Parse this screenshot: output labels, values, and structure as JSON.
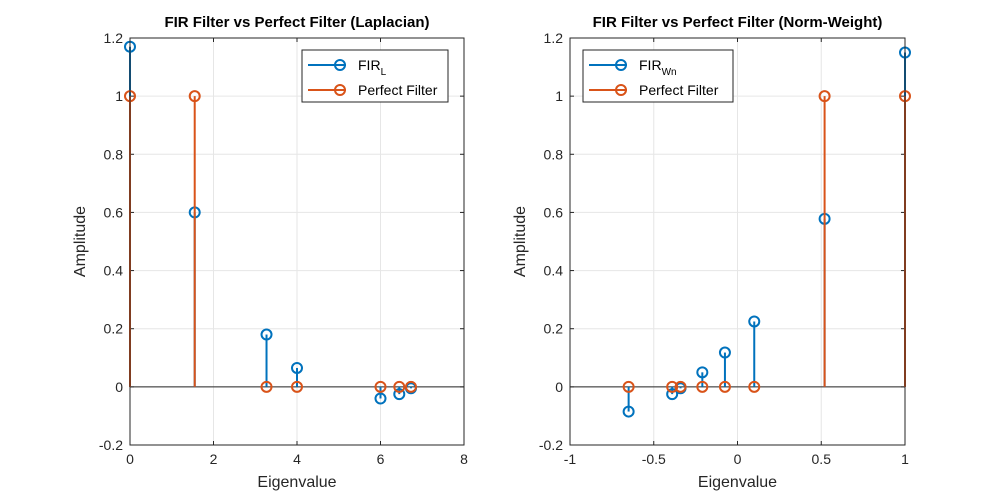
{
  "colors": {
    "fir": "#0072BD",
    "perfect": "#D95319",
    "grid": "#e6e6e6",
    "axis": "#262626"
  },
  "chart_data": [
    {
      "type": "stem",
      "title": "FIR Filter vs Perfect Filter (Laplacian)",
      "xlabel": "Eigenvalue",
      "ylabel": "Amplitude",
      "xlim": [
        0,
        8
      ],
      "ylim": [
        -0.2,
        1.2
      ],
      "xticks": [
        "0",
        "2",
        "4",
        "6",
        "8"
      ],
      "yticks": [
        "-0.2",
        "0",
        "0.2",
        "0.4",
        "0.6",
        "0.8",
        "1",
        "1.2"
      ],
      "grid": true,
      "legend_position": "top-right",
      "series": [
        {
          "name": "FIR",
          "name_sub": "L",
          "color": "#0072BD",
          "x": [
            0,
            1.55,
            3.27,
            4.0,
            6.0,
            6.45,
            6.73
          ],
          "y": [
            1.17,
            0.6,
            0.18,
            0.065,
            -0.04,
            -0.025,
            -0.005
          ]
        },
        {
          "name": "Perfect Filter",
          "color": "#D95319",
          "x": [
            0,
            1.55,
            3.27,
            4.0,
            6.0,
            6.45,
            6.73
          ],
          "y": [
            1,
            1,
            0,
            0,
            0,
            0,
            0
          ]
        }
      ]
    },
    {
      "type": "stem",
      "title": "FIR Filter vs Perfect Filter (Norm-Weight)",
      "xlabel": "Eigenvalue",
      "ylabel": "Amplitude",
      "xlim": [
        -1,
        1
      ],
      "ylim": [
        -0.2,
        1.2
      ],
      "xticks": [
        "-1",
        "-0.5",
        "0",
        "0.5",
        "1"
      ],
      "yticks": [
        "-0.2",
        "0",
        "0.2",
        "0.4",
        "0.6",
        "0.8",
        "1",
        "1.2"
      ],
      "grid": true,
      "legend_position": "top-left",
      "series": [
        {
          "name": "FIR",
          "name_sub": "Wn",
          "color": "#0072BD",
          "x": [
            -0.65,
            -0.39,
            -0.34,
            -0.21,
            -0.075,
            0.1,
            0.52,
            1.0
          ],
          "y": [
            -0.085,
            -0.025,
            -0.005,
            0.05,
            0.118,
            0.225,
            0.578,
            1.15
          ]
        },
        {
          "name": "Perfect Filter",
          "color": "#D95319",
          "x": [
            -0.65,
            -0.39,
            -0.34,
            -0.21,
            -0.075,
            0.1,
            0.52,
            1.0
          ],
          "y": [
            0,
            0,
            0,
            0,
            0,
            0,
            1,
            1
          ]
        }
      ]
    }
  ]
}
